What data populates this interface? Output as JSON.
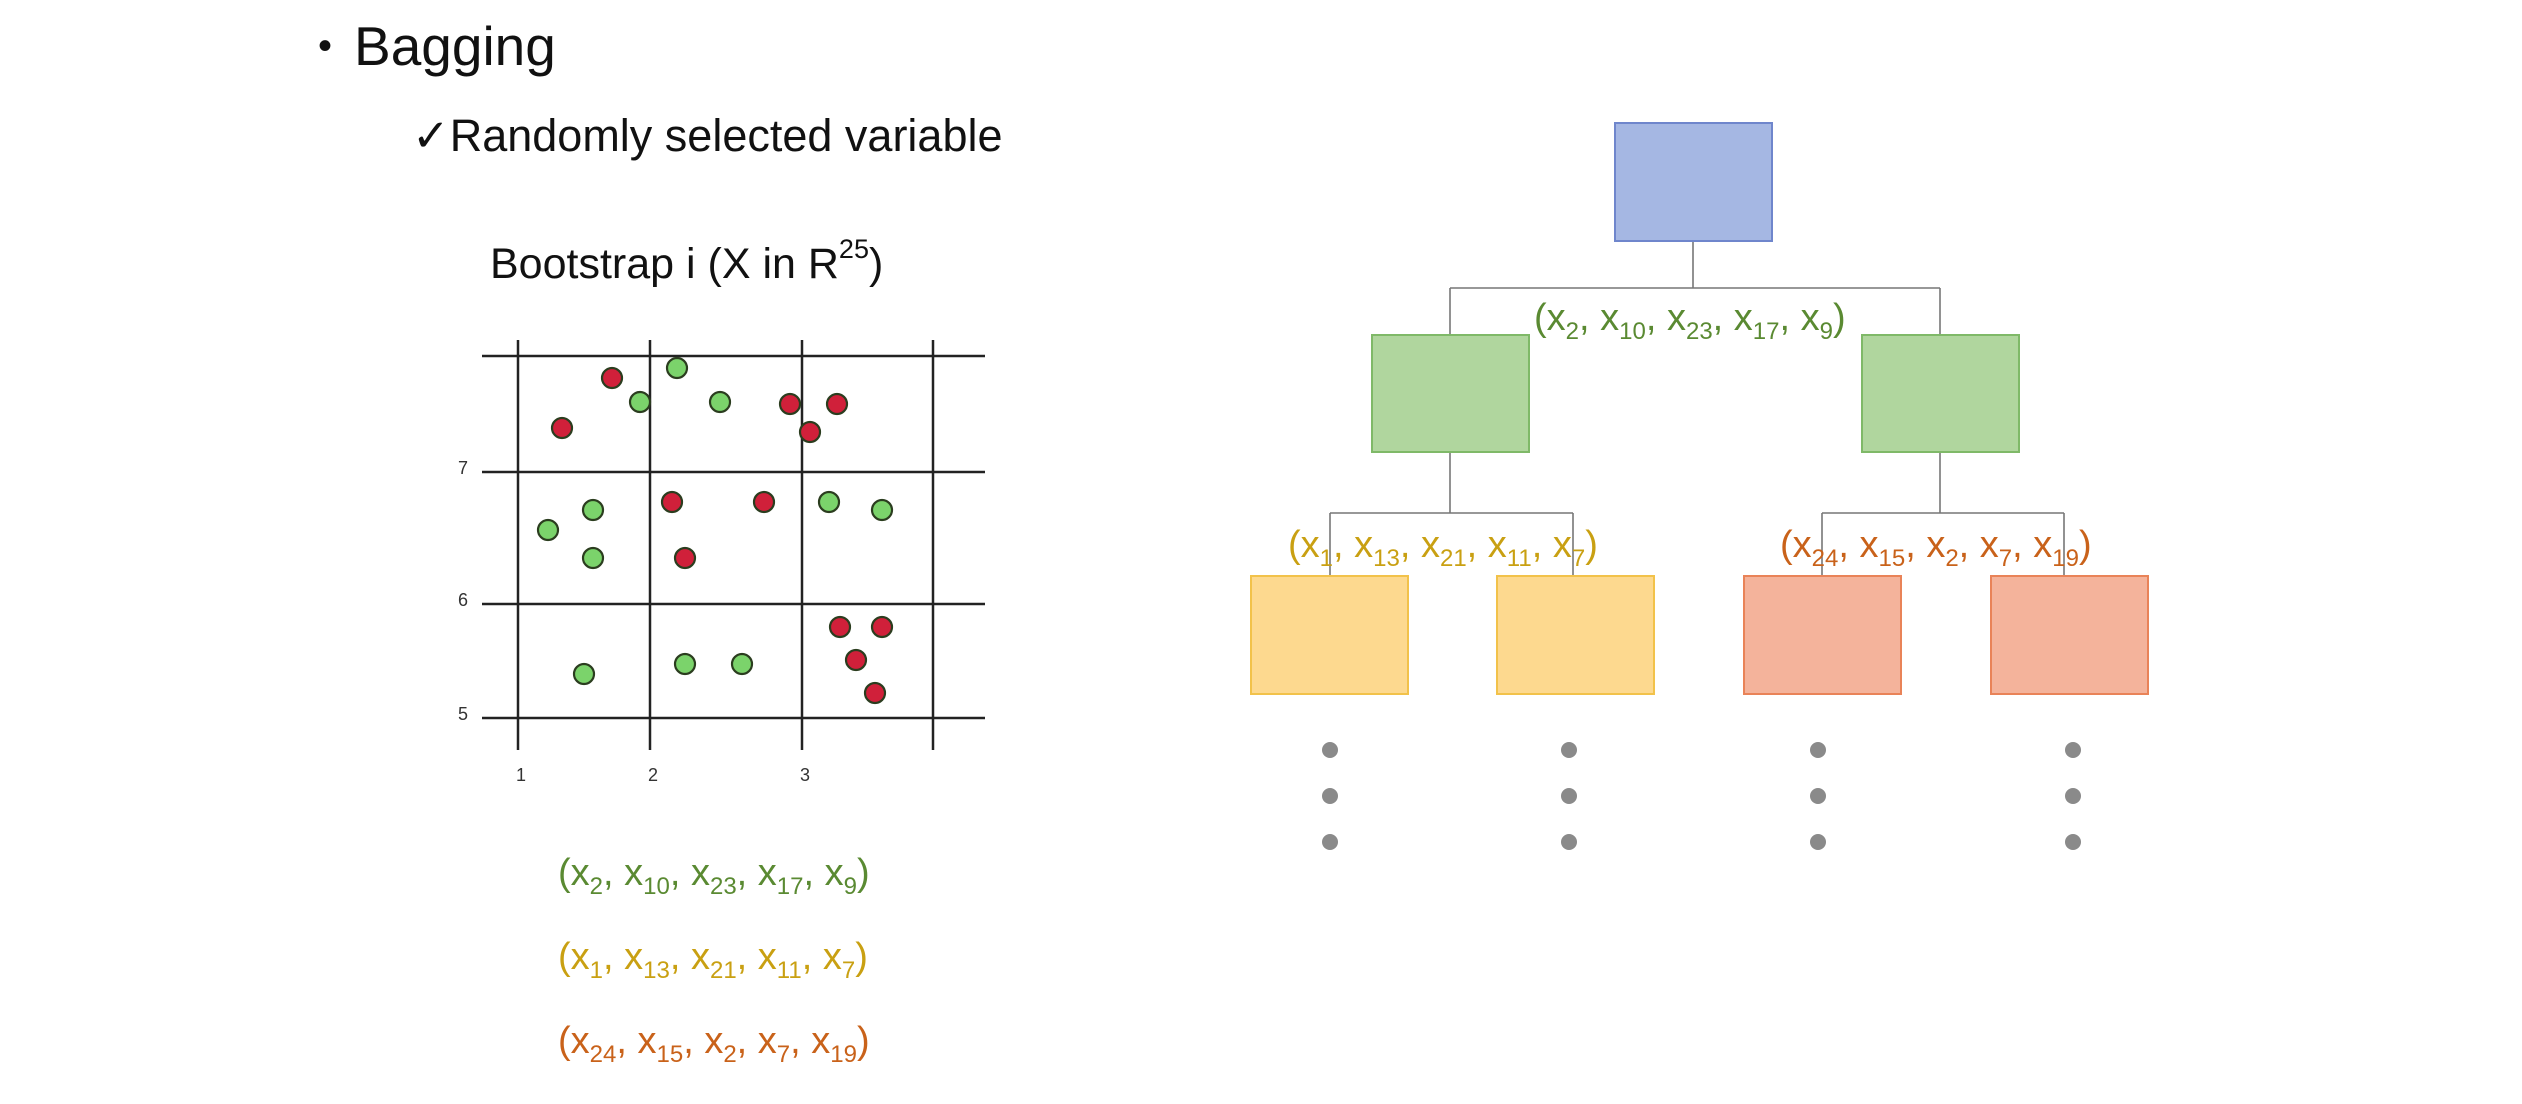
{
  "bullet": {
    "icon": "bullet-dot-icon",
    "label": "Bagging"
  },
  "sub_bullet": {
    "icon": "checkmark-icon",
    "label": "Randomly selected variable"
  },
  "bootstrap": {
    "title_main": "Bootstrap i (X in R",
    "title_sup": "25",
    "title_close": ")"
  },
  "scatter": {
    "x_ticks": [
      "1",
      "2",
      "3"
    ],
    "y_ticks": [
      "7",
      "6",
      "5"
    ],
    "colors": {
      "red": "#d0203a",
      "green": "#7bd36b",
      "outline": "#2b3d1f"
    }
  },
  "sequences": {
    "green": [
      "2",
      "10",
      "23",
      "17",
      "9"
    ],
    "yellow": [
      "1",
      "13",
      "21",
      "11",
      "7"
    ],
    "orange": [
      "24",
      "15",
      "2",
      "7",
      "19"
    ],
    "colors": {
      "green": "#5a8a32",
      "yellow": "#c9a012",
      "orange": "#c9621a"
    },
    "var_letter": "x"
  },
  "tree": {
    "node_colors": {
      "root": "#a5b7e3",
      "level1": "#b0d69e",
      "leaf_yellow": "#fdd98f",
      "leaf_orange": "#f4b39b",
      "dot": "#8a8a8a"
    }
  }
}
